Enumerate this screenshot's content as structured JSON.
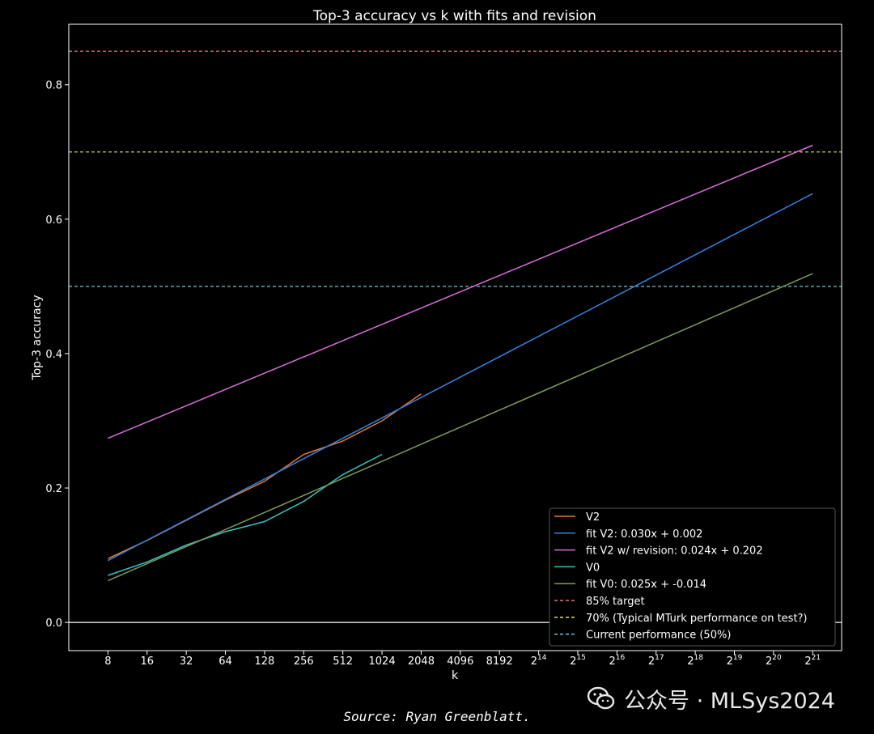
{
  "chart_data": {
    "type": "line",
    "title": "Top-3 accuracy vs k with fits and revision",
    "xlabel": "k",
    "ylabel": "Top-3 accuracy",
    "x_scale": "log2",
    "xlim": [
      4,
      3500000
    ],
    "ylim": [
      -0.042,
      0.89
    ],
    "x_ticks": [
      {
        "value": 8,
        "base": "8",
        "exp": ""
      },
      {
        "value": 16,
        "base": "16",
        "exp": ""
      },
      {
        "value": 32,
        "base": "32",
        "exp": ""
      },
      {
        "value": 64,
        "base": "64",
        "exp": ""
      },
      {
        "value": 128,
        "base": "128",
        "exp": ""
      },
      {
        "value": 256,
        "base": "256",
        "exp": ""
      },
      {
        "value": 512,
        "base": "512",
        "exp": ""
      },
      {
        "value": 1024,
        "base": "1024",
        "exp": ""
      },
      {
        "value": 2048,
        "base": "2048",
        "exp": ""
      },
      {
        "value": 4096,
        "base": "4096",
        "exp": ""
      },
      {
        "value": 8192,
        "base": "8192",
        "exp": ""
      },
      {
        "value": 16384,
        "base": "2",
        "exp": "14"
      },
      {
        "value": 32768,
        "base": "2",
        "exp": "15"
      },
      {
        "value": 65536,
        "base": "2",
        "exp": "16"
      },
      {
        "value": 131072,
        "base": "2",
        "exp": "17"
      },
      {
        "value": 262144,
        "base": "2",
        "exp": "18"
      },
      {
        "value": 524288,
        "base": "2",
        "exp": "19"
      },
      {
        "value": 1048576,
        "base": "2",
        "exp": "20"
      },
      {
        "value": 2097152,
        "base": "2",
        "exp": "21"
      }
    ],
    "y_ticks": [
      {
        "value": 0.0,
        "label": "0.0"
      },
      {
        "value": 0.2,
        "label": "0.2"
      },
      {
        "value": 0.4,
        "label": "0.4"
      },
      {
        "value": 0.6,
        "label": "0.6"
      },
      {
        "value": 0.8,
        "label": "0.8"
      }
    ],
    "grid": false,
    "legend_position": "lower-right",
    "series": [
      {
        "name": "V2",
        "color": "#e07b3c",
        "style": "solid",
        "x": [
          8,
          16,
          32,
          64,
          128,
          256,
          512,
          1024,
          2048
        ],
        "y": [
          0.095,
          0.122,
          0.152,
          0.182,
          0.21,
          0.25,
          0.27,
          0.3,
          0.34
        ]
      },
      {
        "name": "fit V2: 0.030x + 0.002",
        "color": "#3b7fd9",
        "style": "solid",
        "x": [
          8,
          2097152
        ],
        "y": [
          0.092,
          0.638
        ]
      },
      {
        "name": "fit V2 w/ revision: 0.024x + 0.202",
        "color": "#d66fd6",
        "style": "solid",
        "x": [
          8,
          2097152
        ],
        "y": [
          0.274,
          0.71
        ]
      },
      {
        "name": "V0",
        "color": "#3cc0c0",
        "style": "solid",
        "x": [
          8,
          16,
          32,
          64,
          128,
          256,
          512,
          1024
        ],
        "y": [
          0.07,
          0.09,
          0.115,
          0.135,
          0.15,
          0.18,
          0.22,
          0.25
        ]
      },
      {
        "name": "fit V0: 0.025x + -0.014",
        "color": "#7e9b5e",
        "style": "solid",
        "x": [
          8,
          2097152
        ],
        "y": [
          0.062,
          0.519
        ]
      }
    ],
    "reference_lines": [
      {
        "name": "85% target",
        "color": "#e07a72",
        "style": "dashed",
        "y": 0.85
      },
      {
        "name": "70% (Typical MTurk performance on test?)",
        "color": "#e6e05a",
        "style": "dashed",
        "y": 0.7
      },
      {
        "name": "Current performance (50%)",
        "color": "#6fc6d6",
        "style": "dashed",
        "y": 0.5
      }
    ],
    "zero_line": {
      "y": 0.0,
      "color": "#ffffff"
    }
  },
  "caption": "Source: Ryan Greenblatt.",
  "watermark": {
    "text": "公众号 · MLSys2024",
    "icon": "wechat-icon"
  }
}
